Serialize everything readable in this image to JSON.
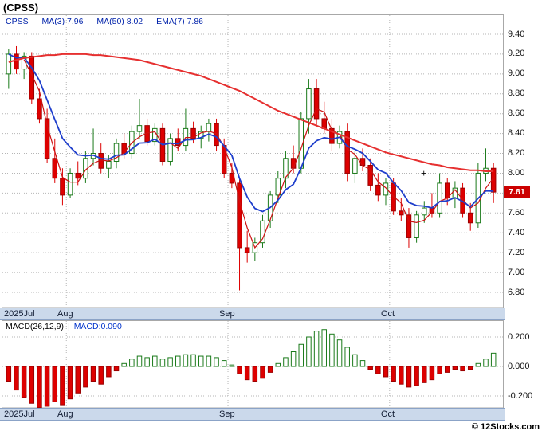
{
  "window": {
    "title": "(CPSS)"
  },
  "legend": {
    "symbol": "CPSS",
    "ma3": "MA(3) 7.96",
    "ma50": "MA(50) 8.02",
    "ema7": "EMA(7) 7.86"
  },
  "price_axis_labels": [
    "9.40",
    "9.20",
    "9.00",
    "8.80",
    "8.60",
    "8.40",
    "8.20",
    "8.00",
    "7.80",
    "7.60",
    "7.40",
    "7.20",
    "7.00",
    "6.80"
  ],
  "current_price_label": "7.81",
  "macd": {
    "label": "MACD(26,12,9)",
    "separator": "|",
    "value": "MACD:0.090",
    "axis_labels": [
      "0.200",
      "0.000",
      "-0.200"
    ]
  },
  "copyright": "© 12Stocks.com",
  "colors": {
    "up": "#1a7a1a",
    "down": "#dd0000",
    "down_edge": "#990000",
    "ma50": "#e63030",
    "ma3": "#cc1111",
    "ema7": "#1f3fcc",
    "grid": "#b5b5b5",
    "strip_bg": "#cbd9eb",
    "price_box_bg": "#cc0000",
    "legend_text": "#0022aa",
    "macd_value_text": "#0033cc"
  },
  "chart_data": {
    "type": "candlestick+macd",
    "title": "(CPSS)",
    "symbol": "CPSS",
    "price_ylim": [
      6.8,
      9.4
    ],
    "price_tick_step": 0.2,
    "macd_ylim": [
      -0.3,
      0.3
    ],
    "grid": "dotted",
    "months": [
      {
        "label": "2025Jul",
        "index": 0
      },
      {
        "label": "Aug",
        "index": 8
      },
      {
        "label": "Sep",
        "index": 29
      },
      {
        "label": "Oct",
        "index": 50
      }
    ],
    "indicators": {
      "ma3_window": 3,
      "ema7_span": 7,
      "ma50_window": 50,
      "macd_params": [
        26,
        12,
        9
      ],
      "macd_last": 0.09
    },
    "marker": {
      "glyph": "+",
      "index": 54,
      "value": 8.0
    },
    "ohlc": [
      [
        9.0,
        9.25,
        8.85,
        9.2
      ],
      [
        9.2,
        9.28,
        9.0,
        9.05
      ],
      [
        9.05,
        9.22,
        8.95,
        9.18
      ],
      [
        9.18,
        9.22,
        8.7,
        8.75
      ],
      [
        8.75,
        8.85,
        8.5,
        8.55
      ],
      [
        8.55,
        8.65,
        8.1,
        8.15
      ],
      [
        8.15,
        8.35,
        7.9,
        7.95
      ],
      [
        7.95,
        8.05,
        7.68,
        7.78
      ],
      [
        7.78,
        8.05,
        7.75,
        8.0
      ],
      [
        8.0,
        8.12,
        7.88,
        7.95
      ],
      [
        7.95,
        8.22,
        7.9,
        8.15
      ],
      [
        8.15,
        8.45,
        8.08,
        8.2
      ],
      [
        8.2,
        8.3,
        8.0,
        8.05
      ],
      [
        8.05,
        8.18,
        7.95,
        8.12
      ],
      [
        8.12,
        8.35,
        8.05,
        8.3
      ],
      [
        8.3,
        8.4,
        8.15,
        8.2
      ],
      [
        8.2,
        8.48,
        8.15,
        8.42
      ],
      [
        8.42,
        8.75,
        8.35,
        8.48
      ],
      [
        8.48,
        8.55,
        8.28,
        8.32
      ],
      [
        8.32,
        8.5,
        8.28,
        8.45
      ],
      [
        8.45,
        8.5,
        8.08,
        8.12
      ],
      [
        8.12,
        8.4,
        8.08,
        8.35
      ],
      [
        8.35,
        8.45,
        8.22,
        8.28
      ],
      [
        8.28,
        8.65,
        8.22,
        8.45
      ],
      [
        8.45,
        8.52,
        8.3,
        8.35
      ],
      [
        8.35,
        8.48,
        8.25,
        8.42
      ],
      [
        8.42,
        8.55,
        8.32,
        8.5
      ],
      [
        8.5,
        8.55,
        8.22,
        8.28
      ],
      [
        8.28,
        8.35,
        7.95,
        8.0
      ],
      [
        8.0,
        8.1,
        7.85,
        7.9
      ],
      [
        7.9,
        7.95,
        6.82,
        7.25
      ],
      [
        7.25,
        7.42,
        7.1,
        7.2
      ],
      [
        7.2,
        7.35,
        7.12,
        7.3
      ],
      [
        7.3,
        7.58,
        7.25,
        7.52
      ],
      [
        7.52,
        7.82,
        7.45,
        7.78
      ],
      [
        7.78,
        8.02,
        7.7,
        7.95
      ],
      [
        7.95,
        8.22,
        7.85,
        8.15
      ],
      [
        8.15,
        8.28,
        8.0,
        8.05
      ],
      [
        8.05,
        8.62,
        8.0,
        8.55
      ],
      [
        8.55,
        8.95,
        8.4,
        8.85
      ],
      [
        8.85,
        8.95,
        8.48,
        8.55
      ],
      [
        8.55,
        8.72,
        8.4,
        8.45
      ],
      [
        8.45,
        8.55,
        8.22,
        8.3
      ],
      [
        8.3,
        8.48,
        8.25,
        8.42
      ],
      [
        8.42,
        8.5,
        7.92,
        8.0
      ],
      [
        8.0,
        8.22,
        7.9,
        8.15
      ],
      [
        8.15,
        8.25,
        8.02,
        8.08
      ],
      [
        8.08,
        8.15,
        7.82,
        7.88
      ],
      [
        7.88,
        8.0,
        7.72,
        7.78
      ],
      [
        7.78,
        7.95,
        7.68,
        7.9
      ],
      [
        7.9,
        7.95,
        7.58,
        7.62
      ],
      [
        7.62,
        7.75,
        7.52,
        7.58
      ],
      [
        7.58,
        7.65,
        7.25,
        7.35
      ],
      [
        7.35,
        7.62,
        7.3,
        7.58
      ],
      [
        7.58,
        7.72,
        7.5,
        7.65
      ],
      [
        7.65,
        7.8,
        7.55,
        7.6
      ],
      [
        7.6,
        8.0,
        7.55,
        7.9
      ],
      [
        7.9,
        7.95,
        7.68,
        7.75
      ],
      [
        7.75,
        7.92,
        7.65,
        7.85
      ],
      [
        7.85,
        7.9,
        7.55,
        7.6
      ],
      [
        7.6,
        7.7,
        7.42,
        7.5
      ],
      [
        7.5,
        8.1,
        7.45,
        8.0
      ],
      [
        8.0,
        8.25,
        7.92,
        8.05
      ],
      [
        8.05,
        8.1,
        7.7,
        7.81
      ]
    ],
    "ma50": [
      9.12,
      9.14,
      9.16,
      9.17,
      9.18,
      9.19,
      9.19,
      9.2,
      9.2,
      9.2,
      9.2,
      9.19,
      9.19,
      9.18,
      9.17,
      9.16,
      9.15,
      9.14,
      9.12,
      9.1,
      9.08,
      9.06,
      9.04,
      9.02,
      9.0,
      8.98,
      8.95,
      8.92,
      8.89,
      8.86,
      8.83,
      8.79,
      8.75,
      8.71,
      8.67,
      8.63,
      8.6,
      8.57,
      8.54,
      8.51,
      8.48,
      8.45,
      8.42,
      8.39,
      8.36,
      8.33,
      8.3,
      8.27,
      8.24,
      8.21,
      8.19,
      8.17,
      8.15,
      8.13,
      8.11,
      8.09,
      8.08,
      8.06,
      8.05,
      8.04,
      8.03,
      8.03,
      8.02,
      8.02
    ],
    "macd_hist": [
      -0.1,
      -0.16,
      -0.21,
      -0.25,
      -0.28,
      -0.27,
      -0.24,
      -0.26,
      -0.22,
      -0.18,
      -0.14,
      -0.1,
      -0.12,
      -0.07,
      -0.03,
      0.02,
      0.05,
      0.07,
      0.06,
      0.07,
      0.05,
      0.06,
      0.07,
      0.08,
      0.08,
      0.07,
      0.07,
      0.06,
      0.04,
      0.01,
      -0.05,
      -0.09,
      -0.1,
      -0.08,
      -0.04,
      0.02,
      0.06,
      0.1,
      0.15,
      0.2,
      0.24,
      0.25,
      0.22,
      0.18,
      0.13,
      0.08,
      0.04,
      -0.02,
      -0.05,
      -0.07,
      -0.1,
      -0.12,
      -0.14,
      -0.13,
      -0.11,
      -0.09,
      -0.05,
      -0.04,
      -0.02,
      -0.03,
      -0.02,
      0.02,
      0.05,
      0.09
    ]
  }
}
